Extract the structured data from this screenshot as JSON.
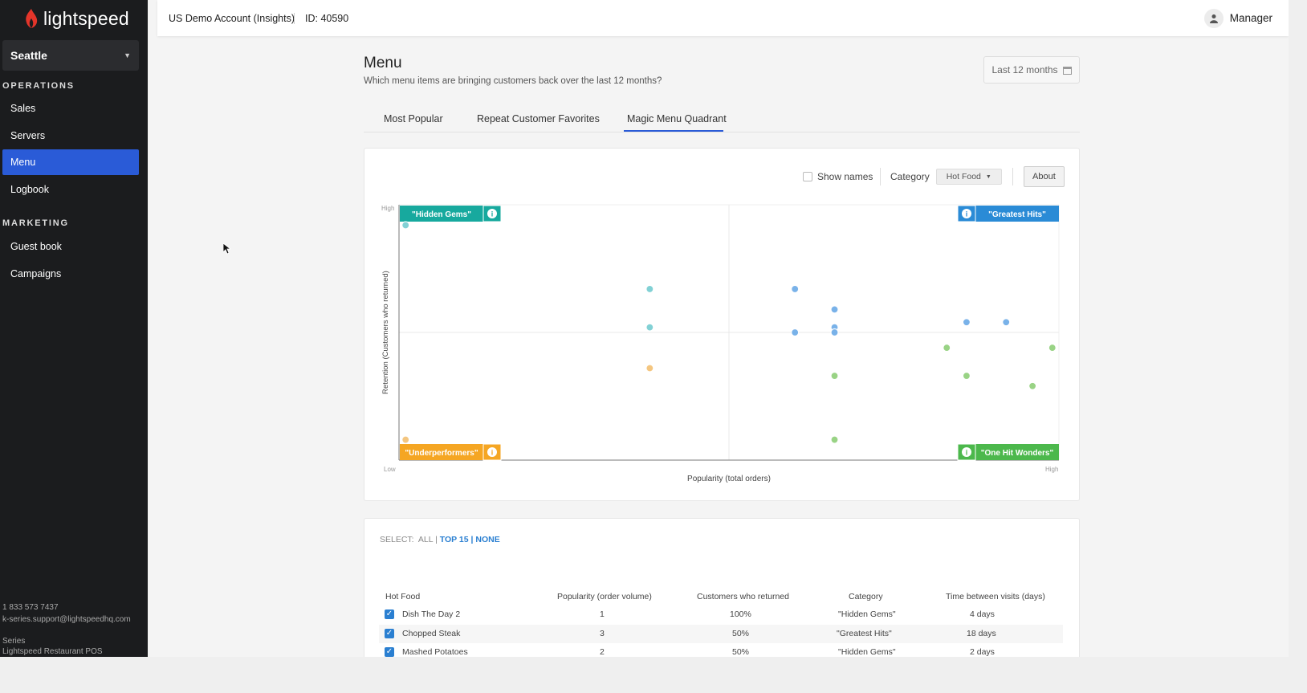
{
  "brand": {
    "name": "lightspeed",
    "color": "#e4352a"
  },
  "sidebar": {
    "location": "Seattle",
    "sections": [
      {
        "label": "OPERATIONS",
        "items": [
          {
            "label": "Sales"
          },
          {
            "label": "Servers"
          },
          {
            "label": "Menu",
            "active": true
          },
          {
            "label": "Logbook"
          }
        ]
      },
      {
        "label": "MARKETING",
        "items": [
          {
            "label": "Guest book"
          },
          {
            "label": "Campaigns"
          }
        ]
      }
    ],
    "footer": {
      "phone": "1 833 573 7437",
      "email": "k-series.support@lightspeedhq.com",
      "line1": "Series",
      "line2": "Lightspeed Restaurant POS"
    }
  },
  "header": {
    "account": "US Demo Account (Insights)",
    "account_id": "ID: 40590",
    "user": "Manager"
  },
  "main": {
    "title": "Menu",
    "subtitle": "Which menu items are bringing customers back over the last 12 months?",
    "date_range": "Last 12 months",
    "tabs": [
      {
        "label": "Most Popular"
      },
      {
        "label": "Repeat Customer Favorites"
      },
      {
        "label": "Magic Menu Quadrant",
        "active": true
      }
    ]
  },
  "controls": {
    "show_names": "Show names",
    "category_label": "Category",
    "category_value": "Hot Food",
    "about": "About"
  },
  "chart_data": {
    "type": "scatter",
    "xlabel": "Popularity (total orders)",
    "ylabel": "Retention (Customers who returned)",
    "x_low": "Low",
    "x_high": "High",
    "y_high": "High",
    "xlim": [
      0,
      1
    ],
    "ylim": [
      0,
      1
    ],
    "quadrants": [
      {
        "label": "\"Hidden Gems\"",
        "color": "#17a99e",
        "position": "top-left"
      },
      {
        "label": "\"Greatest Hits\"",
        "color": "#2a8bd6",
        "position": "top-right"
      },
      {
        "label": "\"Underperformers\"",
        "color": "#f5a623",
        "position": "bottom-left"
      },
      {
        "label": "\"One Hit Wonders\"",
        "color": "#4cb84c",
        "position": "bottom-right"
      }
    ],
    "series": [
      {
        "quadrant": "Hidden Gems",
        "color": "#7ccfd3",
        "points": [
          [
            0.01,
            0.92
          ],
          [
            0.38,
            0.67
          ],
          [
            0.38,
            0.52
          ]
        ]
      },
      {
        "quadrant": "Greatest Hits",
        "color": "#72aee8",
        "points": [
          [
            0.6,
            0.67
          ],
          [
            0.6,
            0.5
          ],
          [
            0.66,
            0.59
          ],
          [
            0.66,
            0.52
          ],
          [
            0.66,
            0.5
          ],
          [
            0.86,
            0.54
          ],
          [
            0.92,
            0.54
          ]
        ]
      },
      {
        "quadrant": "Underperformers",
        "color": "#f4c37a",
        "points": [
          [
            0.01,
            0.08
          ],
          [
            0.38,
            0.36
          ]
        ]
      },
      {
        "quadrant": "One Hit Wonders",
        "color": "#94d17f",
        "points": [
          [
            0.66,
            0.33
          ],
          [
            0.66,
            0.08
          ],
          [
            0.83,
            0.44
          ],
          [
            0.86,
            0.33
          ],
          [
            0.96,
            0.29
          ],
          [
            0.99,
            0.44
          ]
        ]
      }
    ]
  },
  "table": {
    "select_label": "SELECT:",
    "select_all": "ALL",
    "select_top": "TOP 15",
    "select_none": "NONE",
    "separator": "|",
    "headers": [
      "Hot Food",
      "Popularity (order volume)",
      "Customers who returned",
      "Category",
      "Time between visits (days)"
    ],
    "rows": [
      {
        "name": "Dish The Day 2",
        "popularity": "1",
        "returned": "100%",
        "category": "\"Hidden Gems\"",
        "time": "4 days"
      },
      {
        "name": "Chopped Steak",
        "popularity": "3",
        "returned": "50%",
        "category": "\"Greatest Hits\"",
        "time": "18 days"
      },
      {
        "name": "Mashed Potatoes",
        "popularity": "2",
        "returned": "50%",
        "category": "\"Hidden Gems\"",
        "time": "2 days"
      }
    ]
  }
}
